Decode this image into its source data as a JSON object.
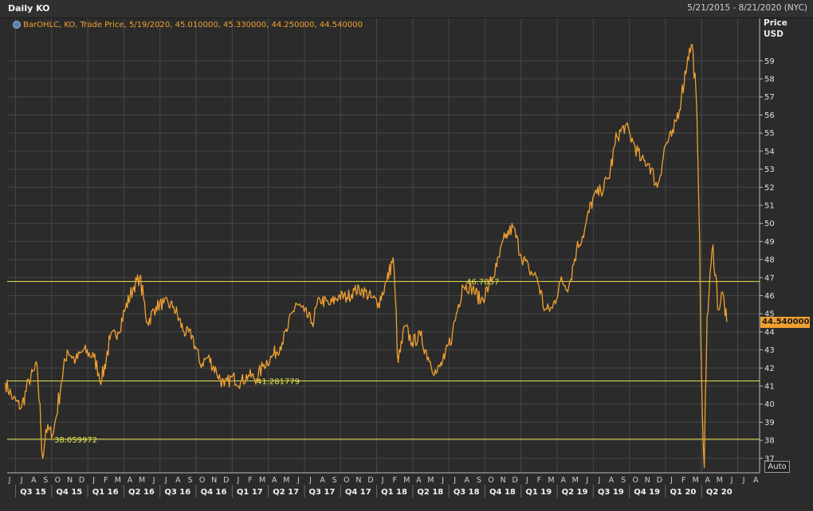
{
  "header": {
    "title": "Daily KO",
    "date_range": "5/21/2015 - 8/21/2020 (NYC)"
  },
  "legend": {
    "text": "BarOHLC, KO, Trade Price, 5/19/2020, 45.010000, 45.330000, 44.250000, 44.540000"
  },
  "axis": {
    "price_label": "Price",
    "currency_label": "USD",
    "last_value_tag": "44.540000",
    "auto_button": "Auto"
  },
  "chart_data": {
    "type": "line",
    "title": "Daily KO",
    "ylabel": "Price USD",
    "ylim": [
      36.2,
      60.6
    ],
    "ytick_values": [
      37,
      38,
      39,
      40,
      41,
      42,
      43,
      44,
      45,
      46,
      47,
      48,
      49,
      50,
      51,
      52,
      53,
      54,
      55,
      56,
      57,
      58,
      59
    ],
    "ytick_labels": [
      "37",
      "38",
      "39",
      "40",
      "41",
      "42",
      "43",
      "44",
      "45",
      "46",
      "47",
      "48",
      "49",
      "50",
      "51",
      "52",
      "53",
      "54",
      "55",
      "56",
      "57",
      "58",
      "59"
    ],
    "x_months": [
      "J",
      "J",
      "A",
      "S",
      "O",
      "N",
      "D",
      "J",
      "F",
      "M",
      "A",
      "M",
      "J",
      "J",
      "A",
      "S",
      "O",
      "N",
      "D",
      "J",
      "F",
      "M",
      "A",
      "M",
      "J",
      "J",
      "A",
      "S",
      "O",
      "N",
      "D",
      "J",
      "F",
      "M",
      "A",
      "M",
      "J",
      "J",
      "A",
      "S",
      "O",
      "N",
      "D",
      "J",
      "F",
      "M",
      "A",
      "M",
      "J",
      "J",
      "A",
      "S",
      "O",
      "N",
      "D",
      "J",
      "F",
      "M",
      "A",
      "M",
      "J",
      "J",
      "A"
    ],
    "x_quarters": [
      "Q3 15",
      "Q4 15",
      "Q1 16",
      "Q2 16",
      "Q3 16",
      "Q4 16",
      "Q1 17",
      "Q2 17",
      "Q3 17",
      "Q4 17",
      "Q1 18",
      "Q2 18",
      "Q3 18",
      "Q4 18",
      "Q1 19",
      "Q2 19",
      "Q3 19",
      "Q4 19",
      "Q1 20",
      "Q2 20"
    ],
    "series": [
      {
        "values": [
          [
            "2015-05-21",
            41.2
          ],
          [
            "2015-06-10",
            40.3
          ],
          [
            "2015-07-01",
            39.8
          ],
          [
            "2015-07-20",
            41.3
          ],
          [
            "2015-08-10",
            42.1
          ],
          [
            "2015-08-24",
            37.0
          ],
          [
            "2015-09-01",
            38.6
          ],
          [
            "2015-09-20",
            38.4
          ],
          [
            "2015-10-10",
            41.2
          ],
          [
            "2015-10-25",
            43.0
          ],
          [
            "2015-11-15",
            42.4
          ],
          [
            "2015-12-05",
            43.0
          ],
          [
            "2015-12-31",
            42.6
          ],
          [
            "2016-01-20",
            41.3
          ],
          [
            "2016-02-10",
            43.6
          ],
          [
            "2016-03-01",
            44.0
          ],
          [
            "2016-03-20",
            45.3
          ],
          [
            "2016-04-10",
            46.5
          ],
          [
            "2016-04-25",
            47.0
          ],
          [
            "2016-05-15",
            44.5
          ],
          [
            "2016-06-05",
            45.4
          ],
          [
            "2016-06-25",
            45.6
          ],
          [
            "2016-07-20",
            45.4
          ],
          [
            "2016-08-15",
            44.0
          ],
          [
            "2016-09-05",
            43.8
          ],
          [
            "2016-09-25",
            42.2
          ],
          [
            "2016-10-15",
            42.6
          ],
          [
            "2016-11-05",
            41.8
          ],
          [
            "2016-11-25",
            41.0
          ],
          [
            "2016-12-15",
            41.5
          ],
          [
            "2017-01-05",
            41.2
          ],
          [
            "2017-01-25",
            41.6
          ],
          [
            "2017-02-15",
            41.4
          ],
          [
            "2017-03-05",
            42.2
          ],
          [
            "2017-03-25",
            42.6
          ],
          [
            "2017-04-20",
            43.4
          ],
          [
            "2017-05-05",
            44.2
          ],
          [
            "2017-05-25",
            45.6
          ],
          [
            "2017-06-15",
            45.1
          ],
          [
            "2017-07-05",
            44.5
          ],
          [
            "2017-07-25",
            45.8
          ],
          [
            "2017-08-20",
            45.5
          ],
          [
            "2017-09-10",
            46.0
          ],
          [
            "2017-10-01",
            45.9
          ],
          [
            "2017-10-20",
            46.3
          ],
          [
            "2017-11-10",
            46.3
          ],
          [
            "2017-12-01",
            45.9
          ],
          [
            "2017-12-20",
            45.6
          ],
          [
            "2018-01-10",
            46.8
          ],
          [
            "2018-01-26",
            48.1
          ],
          [
            "2018-02-08",
            42.3
          ],
          [
            "2018-02-25",
            44.3
          ],
          [
            "2018-03-15",
            43.4
          ],
          [
            "2018-04-05",
            43.8
          ],
          [
            "2018-04-25",
            42.6
          ],
          [
            "2018-05-15",
            41.7
          ],
          [
            "2018-06-05",
            42.5
          ],
          [
            "2018-06-25",
            43.9
          ],
          [
            "2018-07-20",
            46.6
          ],
          [
            "2018-08-15",
            46.4
          ],
          [
            "2018-09-05",
            45.7
          ],
          [
            "2018-09-25",
            46.5
          ],
          [
            "2018-10-15",
            47.6
          ],
          [
            "2018-11-05",
            49.2
          ],
          [
            "2018-11-25",
            49.8
          ],
          [
            "2018-12-15",
            48.3
          ],
          [
            "2019-01-05",
            47.4
          ],
          [
            "2019-01-25",
            47.0
          ],
          [
            "2019-02-14",
            45.2
          ],
          [
            "2019-03-05",
            45.3
          ],
          [
            "2019-03-25",
            46.8
          ],
          [
            "2019-04-15",
            46.5
          ],
          [
            "2019-05-05",
            48.6
          ],
          [
            "2019-05-25",
            49.6
          ],
          [
            "2019-06-15",
            51.4
          ],
          [
            "2019-07-05",
            51.8
          ],
          [
            "2019-07-25",
            52.5
          ],
          [
            "2019-08-15",
            54.8
          ],
          [
            "2019-09-05",
            55.4
          ],
          [
            "2019-09-25",
            54.5
          ],
          [
            "2019-10-15",
            53.5
          ],
          [
            "2019-11-05",
            53.3
          ],
          [
            "2019-11-25",
            52.0
          ],
          [
            "2019-12-15",
            54.3
          ],
          [
            "2020-01-05",
            55.0
          ],
          [
            "2020-01-25",
            57.0
          ],
          [
            "2020-02-10",
            59.2
          ],
          [
            "2020-02-21",
            59.9
          ],
          [
            "2020-03-02",
            57.3
          ],
          [
            "2020-03-09",
            51.2
          ],
          [
            "2020-03-16",
            41.5
          ],
          [
            "2020-03-23",
            36.5
          ],
          [
            "2020-03-30",
            44.8
          ],
          [
            "2020-04-14",
            48.8
          ],
          [
            "2020-04-28",
            45.2
          ],
          [
            "2020-05-08",
            46.2
          ],
          [
            "2020-05-19",
            44.54
          ]
        ]
      }
    ],
    "horizontal_lines": [
      {
        "value": 46.7857,
        "label": "46.7857"
      },
      {
        "value": 41.281779,
        "label": "41.281779"
      },
      {
        "value": 38.059972,
        "label": "38.059972"
      }
    ],
    "last_value": 44.54,
    "grid": true,
    "colors": {
      "line": "#f0a030",
      "horizontal_lines": "#e8e850",
      "background": "#2b2b2b",
      "grid": "#474747"
    }
  }
}
